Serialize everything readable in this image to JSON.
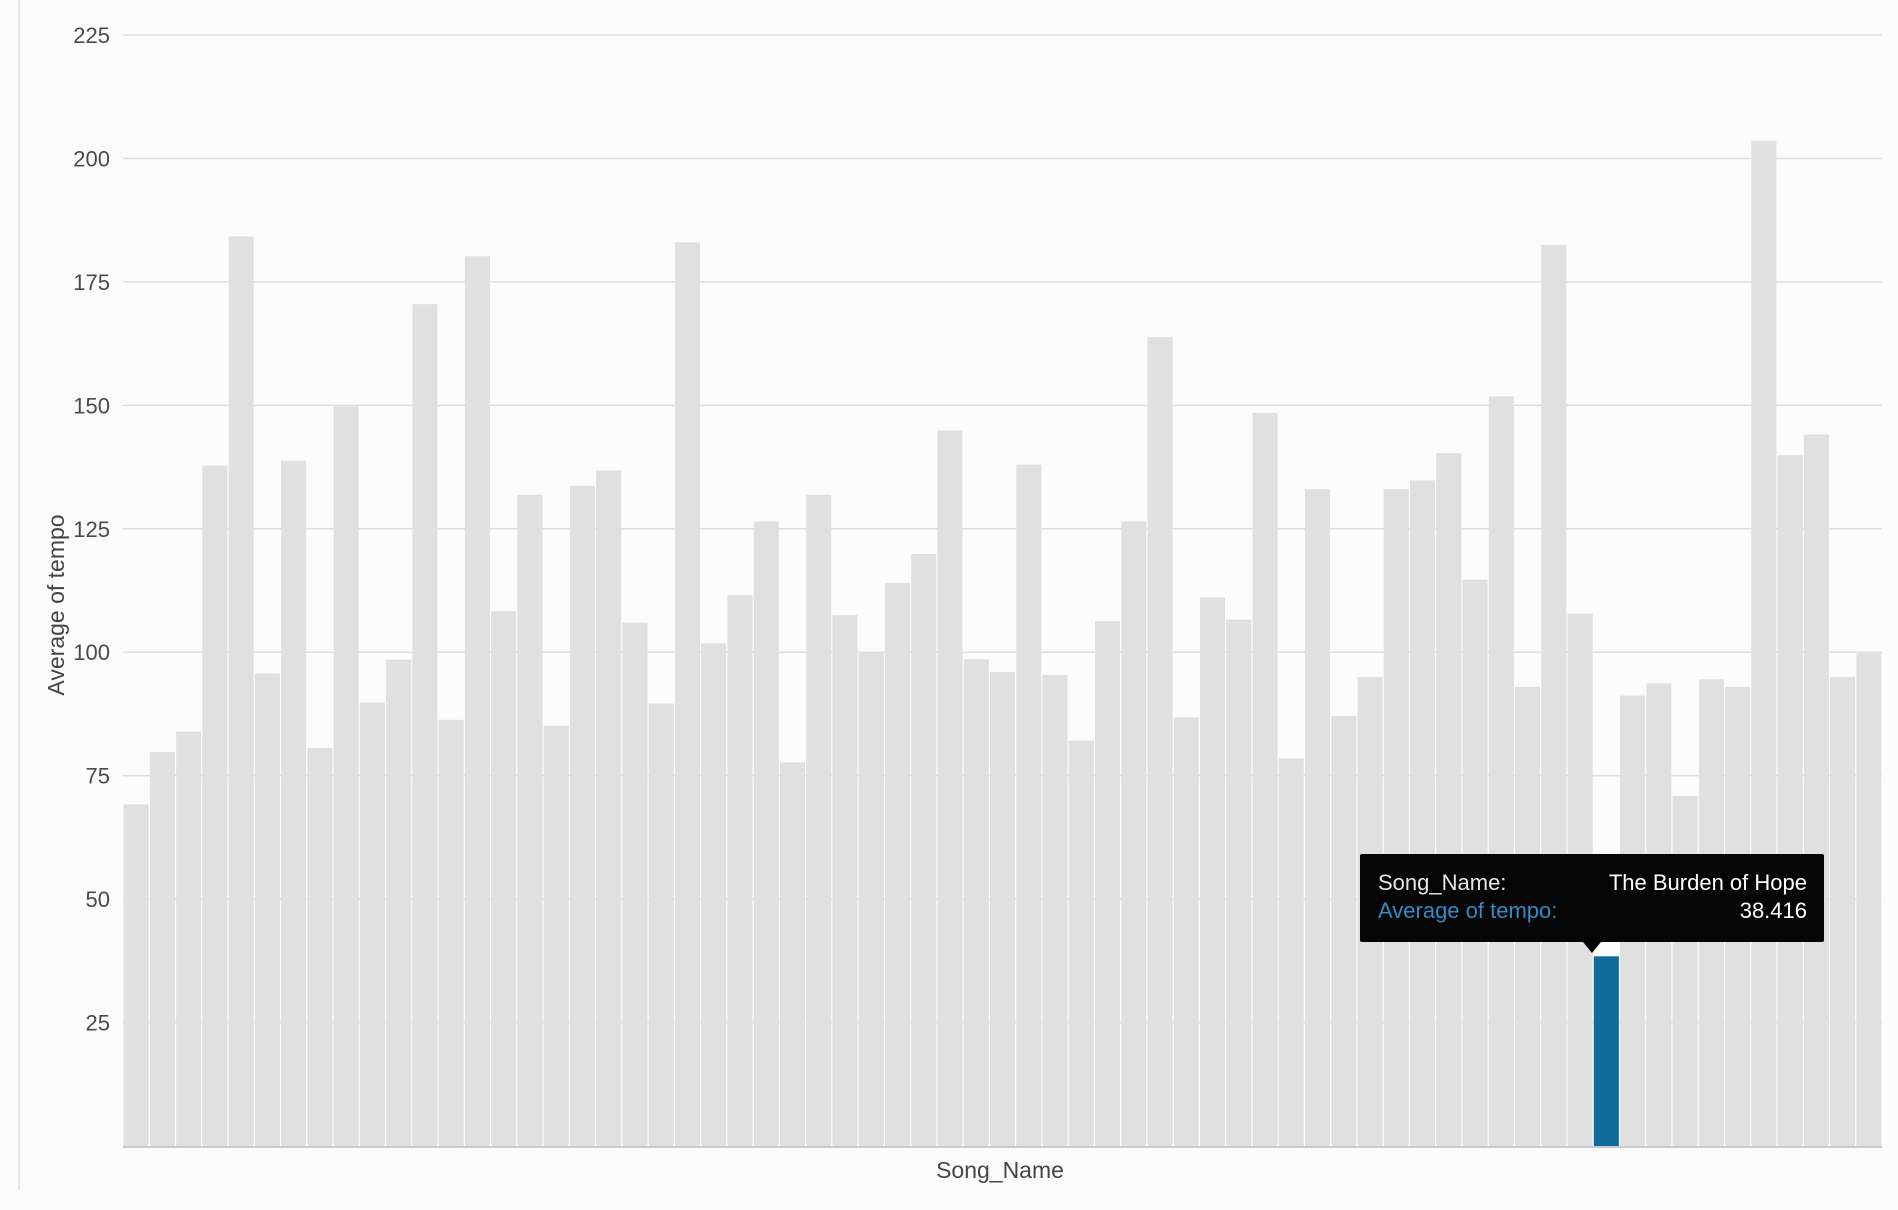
{
  "chart_data": {
    "type": "bar",
    "xlabel": "Song_Name",
    "ylabel": "Average of tempo",
    "ylim": [
      0,
      225
    ],
    "yticks": [
      25,
      50,
      75,
      100,
      125,
      150,
      175,
      200,
      225
    ],
    "grid": true,
    "values": [
      69.2,
      79.8,
      83.9,
      137.8,
      184.2,
      95.7,
      138.8,
      80.6,
      149.8,
      89.8,
      98.5,
      170.5,
      86.3,
      180.2,
      108.3,
      131.9,
      85.1,
      133.7,
      136.8,
      106,
      89.6,
      183,
      101.8,
      111.6,
      126.5,
      77.7,
      131.9,
      107.5,
      99.9,
      114,
      119.9,
      144.9,
      98.6,
      96,
      138,
      95.4,
      82.1,
      106.3,
      126.5,
      163.8,
      86.8,
      111.1,
      106.6,
      148.5,
      78.5,
      133,
      87.1,
      95,
      133,
      134.8,
      140.3,
      114.7,
      151.8,
      93,
      182.5,
      107.8,
      38.416,
      91.2,
      93.7,
      70.9,
      94.5,
      93,
      203.6,
      139.9,
      144.1,
      95,
      100
    ],
    "highlight": {
      "index": 56,
      "color": "#116b9b",
      "category": "The Burden of Hope",
      "value": "38.416"
    },
    "bar_color": "#e0e0e0",
    "grid_color": "#dedede"
  },
  "tooltip": {
    "name_label": "Song_Name:",
    "name_value": "The Burden of Hope",
    "value_label": "Average of tempo:",
    "value_value": "38.416",
    "value_label_color": "#2f8bc9"
  }
}
